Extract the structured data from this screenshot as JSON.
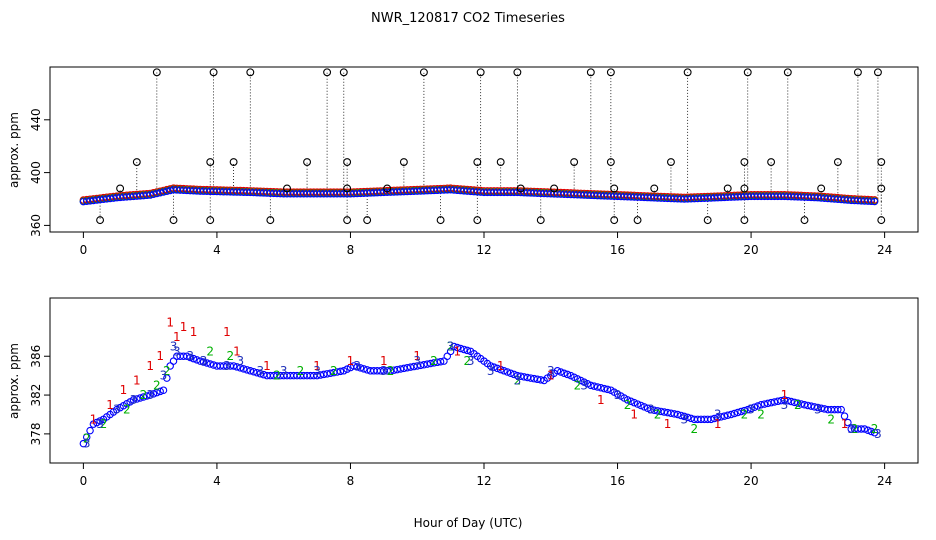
{
  "figure": {
    "title": "NWR_120817  CO2 Timeseries",
    "xlabel": "Hour of Day (UTC)"
  },
  "colors": {
    "series1": "#e00000",
    "series2": "#00b000",
    "series3": "#0000ff",
    "outliers": "#000000"
  },
  "chart_data": [
    {
      "type": "scatter",
      "panel": "top",
      "title": "NWR_120817  CO2 Timeseries",
      "ylabel": "approx. ppm",
      "xlabel": "Hour of Day (UTC)",
      "xlim": [
        -1,
        25
      ],
      "ylim": [
        355,
        480
      ],
      "xticks": [
        "0",
        "4",
        "8",
        "12",
        "16",
        "20",
        "24"
      ],
      "yticks": [
        "360",
        "400",
        "440"
      ],
      "baseline": {
        "x": [
          0,
          1,
          2,
          2.7,
          3.5,
          5,
          6,
          8,
          9,
          10,
          11,
          11.5,
          12,
          13,
          14,
          15,
          16,
          17,
          18,
          19,
          20,
          21,
          22,
          23,
          23.8
        ],
        "y": [
          378,
          381,
          383,
          387,
          386,
          385,
          384,
          384,
          385,
          386,
          387,
          386,
          385,
          385,
          384,
          383,
          382,
          381,
          380,
          381,
          382,
          382,
          381,
          379,
          378
        ]
      },
      "outliers_high": [
        2.2,
        3.9,
        5.0,
        7.3,
        7.8,
        10.2,
        11.9,
        13.0,
        15.2,
        15.8,
        18.1,
        19.9,
        21.1,
        23.2,
        23.8
      ],
      "outliers_high_value": 476,
      "outliers_mid": [
        1.6,
        3.8,
        4.5,
        6.7,
        7.9,
        9.6,
        11.8,
        12.5,
        14.7,
        15.8,
        17.6,
        19.8,
        20.6,
        22.6,
        23.9
      ],
      "outliers_mid_value": 408,
      "outliers_low": [
        0.5,
        2.7,
        3.8,
        5.6,
        7.9,
        8.5,
        10.7,
        11.8,
        13.7,
        15.9,
        16.6,
        18.7,
        19.8,
        21.6,
        23.9
      ],
      "outliers_low_value": 364,
      "outliers_near": [
        1.1,
        6.1,
        7.9,
        9.1,
        13.1,
        14.1,
        15.9,
        17.1,
        19.3,
        19.8,
        22.1,
        23.9
      ],
      "outliers_near_value": 388
    },
    {
      "type": "scatter",
      "panel": "bottom",
      "ylabel": "approx. ppm",
      "xlabel": "Hour of Day (UTC)",
      "xlim": [
        -1,
        25
      ],
      "ylim": [
        375,
        392
      ],
      "xticks": [
        "0",
        "4",
        "8",
        "12",
        "16",
        "20",
        "24"
      ],
      "yticks": [
        "378",
        "382",
        "386"
      ],
      "series": [
        {
          "name": "1",
          "symbol": "1",
          "color": "#e00000",
          "x": [
            0.3,
            0.8,
            1.2,
            1.6,
            2.0,
            2.3,
            2.6,
            2.8,
            3.0,
            3.3,
            4.3,
            4.6,
            5.5,
            7.0,
            8.0,
            9.0,
            10.0,
            11.2,
            12.5,
            14.0,
            15.5,
            16.5,
            17.5,
            19.0,
            21.0,
            22.8
          ],
          "y": [
            379.5,
            381,
            382.5,
            383.5,
            385,
            386,
            389.5,
            388,
            389,
            388.5,
            388.5,
            386.5,
            385,
            385,
            385.5,
            385.5,
            386,
            386.5,
            385,
            384,
            381.5,
            380,
            379,
            379,
            382,
            379
          ]
        },
        {
          "name": "2",
          "symbol": "2",
          "color": "#00b000",
          "x": [
            0.1,
            0.6,
            1.3,
            1.8,
            2.2,
            2.5,
            3.8,
            4.4,
            5.8,
            6.5,
            7.5,
            9.2,
            10.5,
            11.0,
            11.5,
            13.0,
            14.8,
            16.3,
            17.2,
            18.3,
            19.8,
            20.3,
            21.4,
            22.4,
            23.1,
            23.7
          ],
          "y": [
            377.5,
            379,
            380.5,
            382,
            383,
            384.5,
            386.5,
            386,
            384,
            384.5,
            384.5,
            384.5,
            385.5,
            387,
            385.5,
            383.5,
            383,
            381,
            380,
            378.5,
            380,
            380,
            381,
            379.5,
            378.5,
            378.5
          ]
        },
        {
          "name": "3",
          "symbol": "3",
          "color": "#2233bb",
          "x": [
            0.1,
            0.5,
            1.0,
            1.5,
            2.0,
            2.4,
            2.7,
            2.8,
            3.2,
            3.6,
            4.3,
            4.7,
            5.3,
            6.0,
            7.0,
            8.2,
            9.0,
            10.0,
            11.0,
            11.6,
            12.2,
            13.0,
            14.0,
            15.0,
            16.0,
            17.0,
            18.0,
            19.0,
            20.0,
            21.0,
            22.0,
            23.0,
            23.8
          ],
          "y": [
            377,
            379,
            380.5,
            381.5,
            382,
            384,
            387,
            386.5,
            386,
            385.5,
            385,
            385.5,
            384.5,
            384.5,
            384.5,
            385,
            384.5,
            385.5,
            387,
            385.5,
            384.5,
            383.5,
            384.5,
            383,
            382,
            380.5,
            379.5,
            380,
            380.5,
            381,
            380.5,
            378.5,
            378
          ]
        }
      ],
      "circles_trend": {
        "x": [
          0.0,
          0.3,
          0.6,
          1.0,
          1.5,
          2.0,
          2.4,
          2.6,
          2.8,
          3.1,
          3.5,
          4.0,
          4.5,
          5.0,
          5.5,
          6.0,
          7.0,
          7.8,
          8.1,
          8.6,
          9.2,
          10.0,
          10.8,
          11.1,
          11.6,
          12.2,
          13.0,
          13.8,
          14.2,
          14.6,
          15.2,
          15.8,
          16.3,
          17.0,
          17.8,
          18.3,
          18.8,
          19.4,
          19.9,
          20.3,
          21.0,
          21.6,
          22.3,
          22.7,
          23.0,
          23.4,
          23.8
        ],
        "y": [
          377.0,
          379.0,
          379.5,
          380.5,
          381.5,
          382.0,
          382.5,
          385.0,
          386.0,
          386.0,
          385.5,
          385.0,
          385.0,
          384.5,
          384.0,
          384.0,
          384.0,
          384.5,
          385.0,
          384.5,
          384.5,
          385.0,
          385.5,
          387.0,
          386.5,
          385.0,
          384.0,
          383.5,
          384.5,
          384.0,
          383.0,
          382.5,
          381.5,
          380.5,
          380.0,
          379.5,
          379.5,
          380.0,
          380.5,
          381.0,
          381.5,
          381.0,
          380.5,
          380.5,
          378.5,
          378.5,
          378.0
        ]
      }
    }
  ]
}
